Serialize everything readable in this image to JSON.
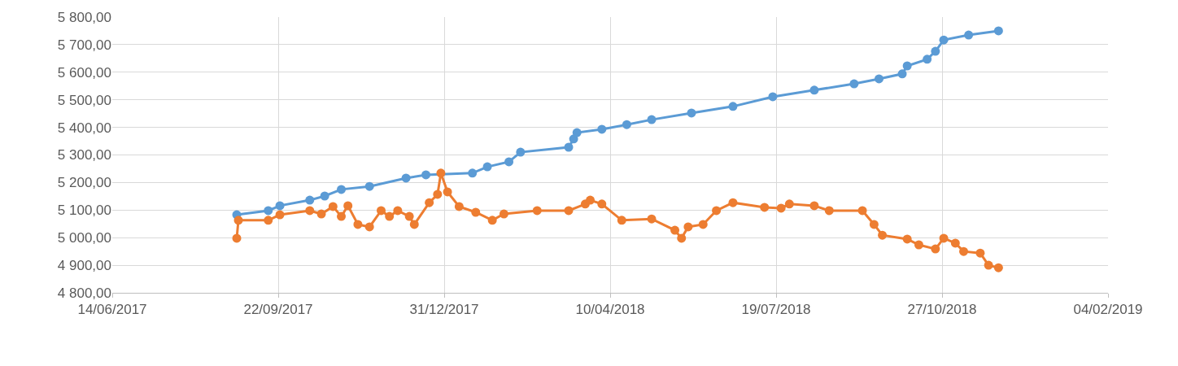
{
  "chart_data": {
    "type": "line",
    "marker": "circle",
    "line_style": "solid",
    "grid": true,
    "xlim": [
      "2017-06-14",
      "2019-02-04"
    ],
    "xticks": [
      {
        "value": "2017-06-14",
        "label": "14/06/2017"
      },
      {
        "value": "2017-09-22",
        "label": "22/09/2017"
      },
      {
        "value": "2017-12-31",
        "label": "31/12/2017"
      },
      {
        "value": "2018-04-10",
        "label": "10/04/2018"
      },
      {
        "value": "2018-07-19",
        "label": "19/07/2018"
      },
      {
        "value": "2018-10-27",
        "label": "27/10/2018"
      },
      {
        "value": "2019-02-04",
        "label": "04/02/2019"
      }
    ],
    "ylim": [
      4800,
      5800
    ],
    "yticks": [
      {
        "value": 4800,
        "label": "4 800,00"
      },
      {
        "value": 4900,
        "label": "4 900,00"
      },
      {
        "value": 5000,
        "label": "5 000,00"
      },
      {
        "value": 5100,
        "label": "5 100,00"
      },
      {
        "value": 5200,
        "label": "5 200,00"
      },
      {
        "value": 5300,
        "label": "5 300,00"
      },
      {
        "value": 5400,
        "label": "5 400,00"
      },
      {
        "value": 5500,
        "label": "5 500,00"
      },
      {
        "value": 5600,
        "label": "5 600,00"
      },
      {
        "value": 5700,
        "label": "5 700,00"
      },
      {
        "value": 5800,
        "label": "5 800,00"
      }
    ],
    "series": [
      {
        "color": "#5b9bd5",
        "x": [
          "2017-08-28",
          "2017-09-16",
          "2017-09-23",
          "2017-10-11",
          "2017-10-20",
          "2017-10-30",
          "2017-11-16",
          "2017-12-08",
          "2017-12-20",
          "2018-01-17",
          "2018-01-26",
          "2018-02-08",
          "2018-02-15",
          "2018-03-16",
          "2018-03-19",
          "2018-03-21",
          "2018-04-05",
          "2018-04-20",
          "2018-05-05",
          "2018-05-29",
          "2018-06-23",
          "2018-07-17",
          "2018-08-11",
          "2018-09-04",
          "2018-09-19",
          "2018-10-03",
          "2018-10-06",
          "2018-10-18",
          "2018-10-23",
          "2018-10-28",
          "2018-11-12",
          "2018-11-30"
        ],
        "values": [
          5083,
          5098,
          5116,
          5136,
          5151,
          5175,
          5186,
          5216,
          5228,
          5234,
          5257,
          5275,
          5310,
          5328,
          5358,
          5381,
          5393,
          5410,
          5428,
          5452,
          5476,
          5511,
          5535,
          5558,
          5576,
          5594,
          5623,
          5647,
          5676,
          5717,
          5735,
          5750
        ]
      },
      {
        "color": "#ed7d31",
        "x": [
          "2017-08-28",
          "2017-08-29",
          "2017-09-16",
          "2017-09-23",
          "2017-10-11",
          "2017-10-18",
          "2017-10-25",
          "2017-10-30",
          "2017-11-03",
          "2017-11-09",
          "2017-11-16",
          "2017-11-23",
          "2017-11-28",
          "2017-12-03",
          "2017-12-10",
          "2017-12-13",
          "2017-12-22",
          "2017-12-27",
          "2017-12-29",
          "2018-01-02",
          "2018-01-09",
          "2018-01-19",
          "2018-01-29",
          "2018-02-05",
          "2018-02-25",
          "2018-03-16",
          "2018-03-26",
          "2018-03-29",
          "2018-04-05",
          "2018-04-17",
          "2018-05-05",
          "2018-05-19",
          "2018-05-23",
          "2018-05-27",
          "2018-06-05",
          "2018-06-13",
          "2018-06-23",
          "2018-07-12",
          "2018-07-22",
          "2018-07-27",
          "2018-08-11",
          "2018-08-20",
          "2018-09-09",
          "2018-09-16",
          "2018-09-21",
          "2018-10-06",
          "2018-10-13",
          "2018-10-23",
          "2018-10-28",
          "2018-11-04",
          "2018-11-09",
          "2018-11-19",
          "2018-11-24",
          "2018-11-30"
        ],
        "values": [
          4998,
          5063,
          5063,
          5083,
          5098,
          5086,
          5113,
          5077,
          5116,
          5048,
          5039,
          5098,
          5077,
          5098,
          5077,
          5048,
          5127,
          5157,
          5234,
          5166,
          5113,
          5092,
          5063,
          5086,
          5098,
          5098,
          5122,
          5136,
          5122,
          5063,
          5068,
          5027,
          4998,
          5039,
          5048,
          5098,
          5127,
          5110,
          5107,
          5122,
          5116,
          5098,
          5098,
          5048,
          5009,
          4995,
          4974,
          4959,
          4998,
          4980,
          4950,
          4944,
          4900,
          4891
        ]
      }
    ]
  }
}
